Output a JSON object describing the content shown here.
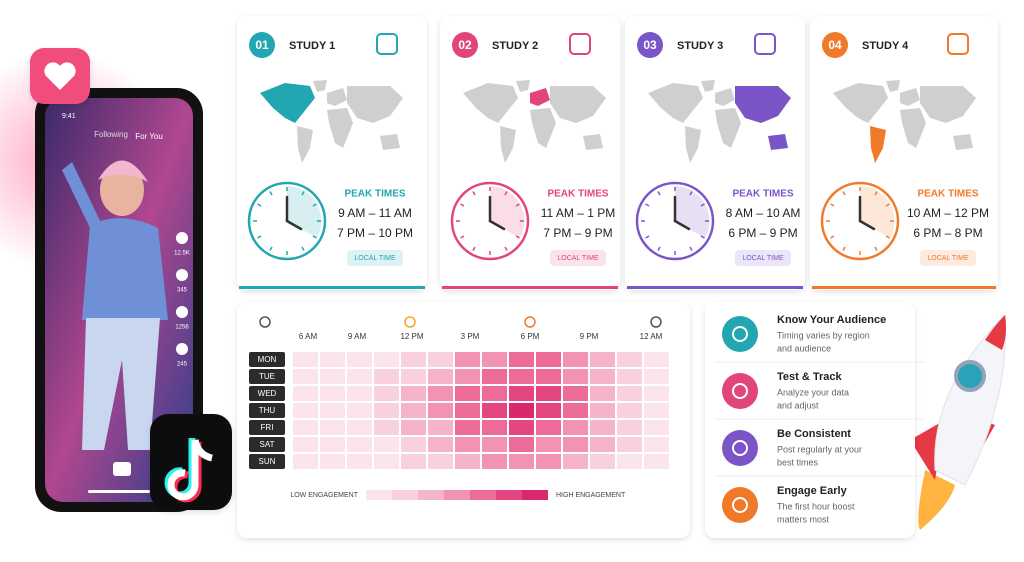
{
  "phone": {
    "time": "9:41",
    "tabs": [
      "Following",
      "For You"
    ],
    "counts": [
      "12.5K",
      "345",
      "1256",
      "245"
    ]
  },
  "studies": [
    {
      "number": "01",
      "title": "STUDY 1",
      "color": "#22a6b1",
      "peak_label": "PEAK TIMES",
      "times": [
        "9 AM – 11 AM",
        "7 PM – 10 PM"
      ],
      "badge": "LOCAL TIME"
    },
    {
      "number": "02",
      "title": "STUDY 2",
      "color": "#e2447c",
      "peak_label": "PEAK TIMES",
      "times": [
        "11 AM – 1 PM",
        "7 PM – 9 PM"
      ],
      "badge": "LOCAL TIME"
    },
    {
      "number": "03",
      "title": "STUDY 3",
      "color": "#7a55c8",
      "peak_label": "PEAK TIMES",
      "times": [
        "8 AM – 10 AM",
        "6 PM – 9 PM"
      ],
      "badge": "LOCAL TIME"
    },
    {
      "number": "04",
      "title": "STUDY 4",
      "color": "#f07a2a",
      "peak_label": "PEAK TIMES",
      "times": [
        "10 AM – 12 PM",
        "6 PM – 8 PM"
      ],
      "badge": "LOCAL TIME"
    }
  ],
  "heatmap": {
    "times": [
      "6 AM",
      "9 AM",
      "12 PM",
      "3 PM",
      "6 PM",
      "9 PM",
      "12 AM"
    ],
    "days": [
      "MON",
      "TUE",
      "WED",
      "THU",
      "FRI",
      "SAT",
      "SUN"
    ],
    "levels": [
      [
        1,
        1,
        1,
        1,
        2,
        2,
        4,
        4,
        5,
        5,
        4,
        3,
        2,
        1
      ],
      [
        1,
        1,
        1,
        2,
        2,
        3,
        4,
        5,
        5,
        5,
        4,
        3,
        2,
        1
      ],
      [
        1,
        1,
        1,
        2,
        3,
        4,
        5,
        5,
        6,
        6,
        5,
        3,
        2,
        1
      ],
      [
        1,
        1,
        1,
        2,
        3,
        4,
        5,
        6,
        7,
        6,
        5,
        3,
        2,
        1
      ],
      [
        1,
        1,
        1,
        2,
        3,
        3,
        5,
        5,
        6,
        5,
        4,
        3,
        2,
        1
      ],
      [
        1,
        1,
        1,
        1,
        2,
        3,
        4,
        4,
        5,
        4,
        4,
        3,
        2,
        1
      ],
      [
        1,
        1,
        1,
        1,
        2,
        2,
        3,
        4,
        4,
        4,
        3,
        2,
        1,
        1
      ]
    ],
    "scale": [
      "#fbe4ec",
      "#f9d0df",
      "#f6b4cb",
      "#f293b3",
      "#ec6b98",
      "#e44681",
      "#d9286d"
    ],
    "low_label": "LOW ENGAGEMENT",
    "high_label": "HIGH ENGAGEMENT"
  },
  "tips": [
    {
      "title": "Know Your Audience",
      "color": "#22a6b1",
      "text": [
        "Timing varies by region",
        "and audience"
      ]
    },
    {
      "title": "Test & Track",
      "color": "#e2447c",
      "text": [
        "Analyze your data",
        "and adjust"
      ]
    },
    {
      "title": "Be Consistent",
      "color": "#7a55c8",
      "text": [
        "Post regularly at your",
        "best times"
      ]
    },
    {
      "title": "Engage Early",
      "color": "#f07a2a",
      "text": [
        "The first hour boost",
        "matters most"
      ]
    }
  ]
}
